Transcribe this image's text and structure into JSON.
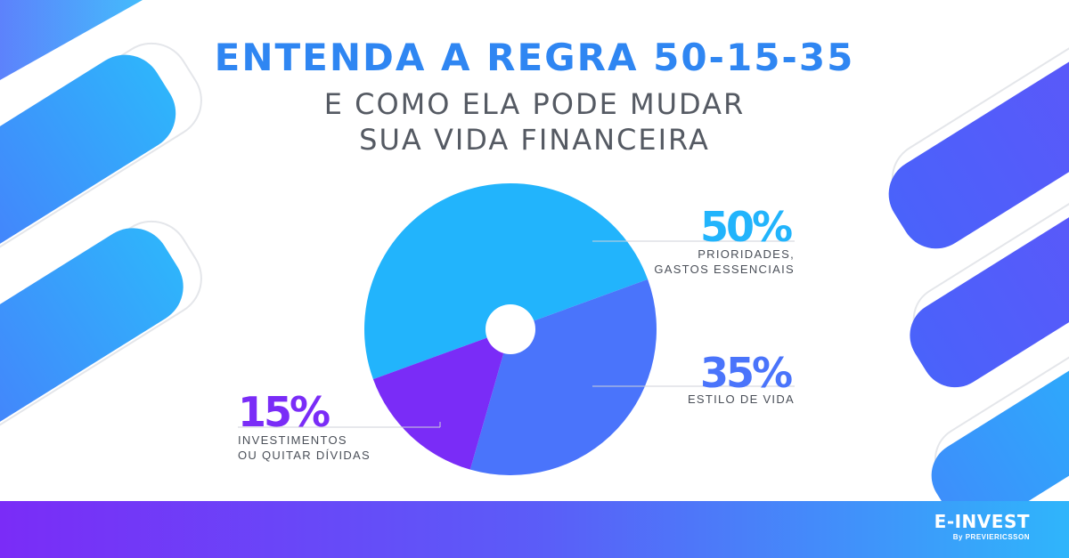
{
  "header": {
    "title": "ENTENDA A REGRA 50-15-35",
    "subtitle_line1": "E COMO ELA PODE MUDAR",
    "subtitle_line2": "SUA VIDA FINANCEIRA"
  },
  "chart_data": {
    "type": "pie",
    "title": "ENTENDA A REGRA 50-15-35",
    "slices": [
      {
        "value": 50,
        "percent_label": "50%",
        "label_line1": "PRIORIDADES,",
        "label_line2": "GASTOS ESSENCIAIS",
        "color": "#22b4fc"
      },
      {
        "value": 35,
        "percent_label": "35%",
        "label_line1": "ESTILO DE VIDA",
        "label_line2": "",
        "color": "#4a74fb"
      },
      {
        "value": 15,
        "percent_label": "15%",
        "label_line1": "INVESTIMENTOS",
        "label_line2": "OU QUITAR DÍVIDAS",
        "color": "#7a2cf7"
      }
    ]
  },
  "footer": {
    "brand_name": "E-INVEST",
    "brand_by": "By PREVIERICSSON"
  },
  "colors": {
    "title": "#2f86f2",
    "subtitle": "#555a63",
    "accent_light": "#22b4fc",
    "accent_mid": "#4a74fb",
    "accent_dark": "#7a2cf7"
  }
}
